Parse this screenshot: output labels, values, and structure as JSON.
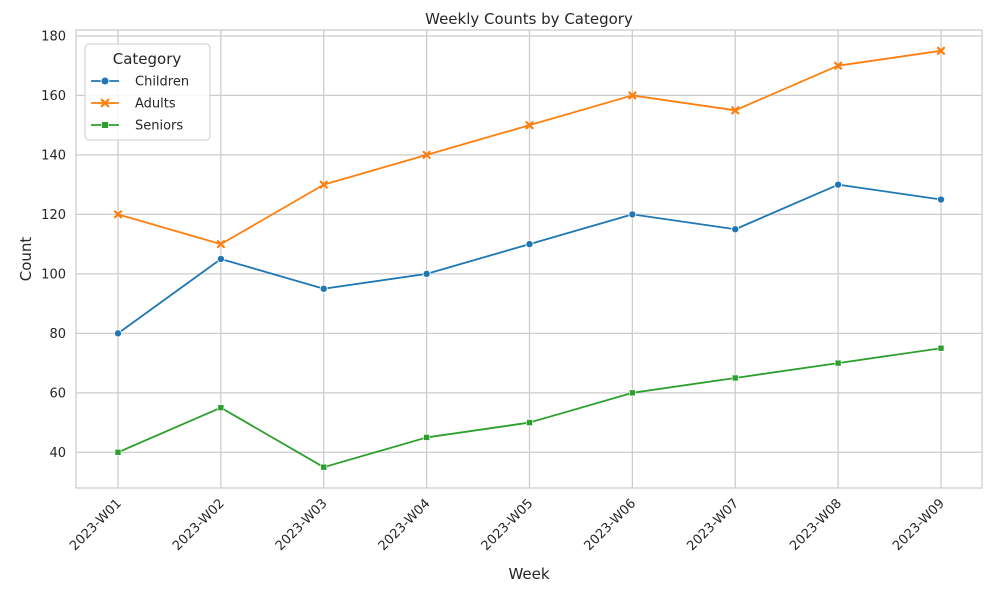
{
  "chart_data": {
    "type": "line",
    "title": "Weekly Counts by Category",
    "xlabel": "Week",
    "ylabel": "Count",
    "categories": [
      "2023-W01",
      "2023-W02",
      "2023-W03",
      "2023-W04",
      "2023-W05",
      "2023-W06",
      "2023-W07",
      "2023-W08",
      "2023-W09"
    ],
    "ylim": [
      28,
      182
    ],
    "yticks": [
      40,
      60,
      80,
      100,
      120,
      140,
      160,
      180
    ],
    "grid": true,
    "legend": {
      "title": "Category",
      "position": "top-left"
    },
    "series": [
      {
        "name": "Children",
        "color": "#1f77b4",
        "marker": "circle",
        "values": [
          80,
          105,
          95,
          100,
          110,
          120,
          115,
          130,
          125
        ]
      },
      {
        "name": "Adults",
        "color": "#ff7f0e",
        "marker": "x",
        "values": [
          120,
          110,
          130,
          140,
          150,
          160,
          155,
          170,
          175
        ]
      },
      {
        "name": "Seniors",
        "color": "#2ca02c",
        "marker": "square",
        "values": [
          40,
          55,
          35,
          45,
          50,
          60,
          65,
          70,
          75
        ]
      }
    ]
  }
}
